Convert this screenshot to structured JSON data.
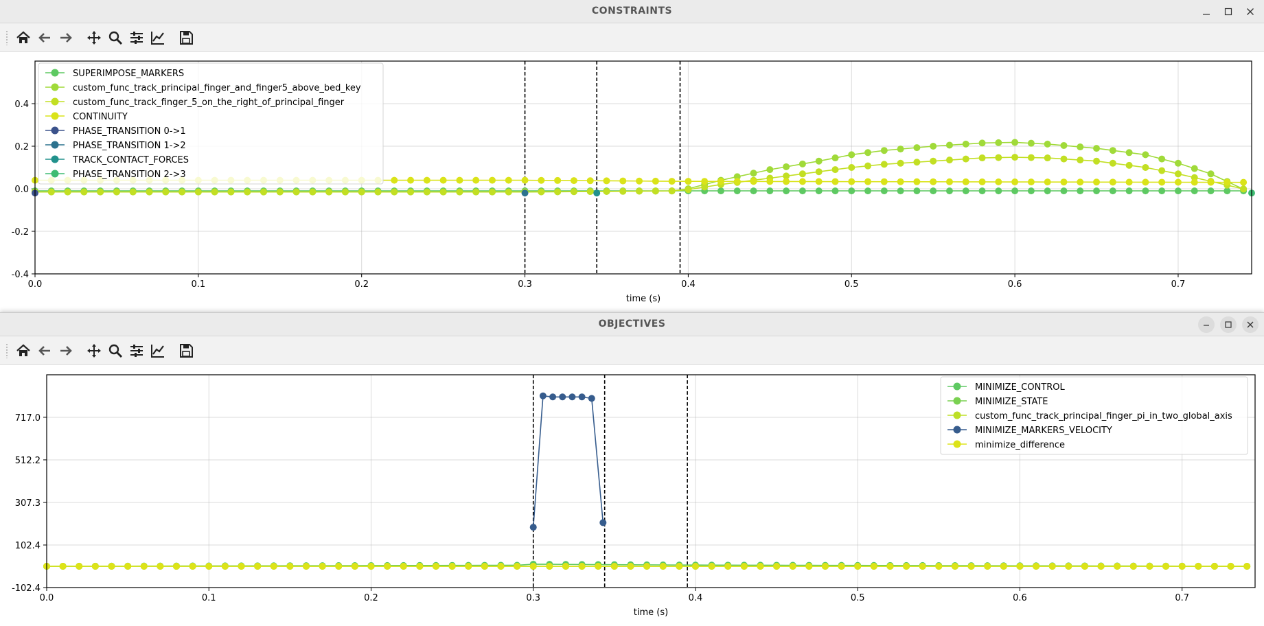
{
  "windows": [
    {
      "title": "CONSTRAINTS",
      "controls": [
        "minimize",
        "maximize",
        "close"
      ]
    },
    {
      "title": "OBJECTIVES",
      "controls": [
        "minimize",
        "maximize",
        "close"
      ]
    }
  ],
  "toolbar_icons": [
    "home-icon",
    "back-arrow-icon",
    "forward-arrow-icon",
    "pan-icon",
    "zoom-icon",
    "configure-subplots-icon",
    "edit-axis-icon",
    "save-icon"
  ],
  "colors": {
    "SUPERIMPOSE_MARKERS": "#5ec962",
    "custom_finger5": "#a0da39",
    "custom_right": "#c2df23",
    "CONTINUITY": "#dae319",
    "PHASE_TRANSITION 0->1": "#3b528b",
    "PHASE_TRANSITION 1->2": "#2c728e",
    "TRACK_CONTACT_FORCES": "#21918c",
    "PHASE_TRANSITION 2->3": "#3fbc73",
    "MINIMIZE_CONTROL": "#5ec962",
    "MINIMIZE_STATE": "#7ad151",
    "custom_pi": "#bddf26",
    "MINIMIZE_MARKERS_VELOCITY": "#365c8d",
    "minimize_difference": "#dde318"
  },
  "chart_data": [
    {
      "type": "line",
      "window": "CONSTRAINTS",
      "xlabel": "time (s)",
      "ylabel": "",
      "xlim": [
        0.0,
        0.745
      ],
      "ylim": [
        -0.4,
        0.6
      ],
      "x_ticks": [
        "0.0",
        "0.1",
        "0.2",
        "0.3",
        "0.4",
        "0.5",
        "0.6",
        "0.7"
      ],
      "y_ticks": [
        "-0.4",
        "-0.2",
        "0.0",
        "0.2",
        "0.4"
      ],
      "grid": true,
      "legend_position": "upper-left",
      "phase_boundaries": [
        0.3,
        0.344,
        0.395
      ],
      "series": [
        {
          "name": "SUPERIMPOSE_MARKERS",
          "color_key": "SUPERIMPOSE_MARKERS",
          "x": [
            0.0,
            0.3,
            0.395,
            0.745
          ],
          "y": [
            -0.01,
            -0.01,
            -0.01,
            -0.01
          ]
        },
        {
          "name": "custom_func_track_principal_finger_and_finger5_above_bed_key",
          "color_key": "custom_finger5",
          "x": [
            0.0,
            0.1,
            0.2,
            0.3,
            0.395,
            0.42,
            0.45,
            0.48,
            0.5,
            0.52,
            0.55,
            0.58,
            0.6,
            0.62,
            0.65,
            0.68,
            0.7,
            0.72,
            0.745
          ],
          "y": [
            -0.015,
            -0.015,
            -0.015,
            -0.015,
            -0.01,
            0.04,
            0.09,
            0.13,
            0.16,
            0.18,
            0.2,
            0.215,
            0.218,
            0.21,
            0.19,
            0.16,
            0.12,
            0.07,
            -0.02
          ]
        },
        {
          "name": "custom_func_track_finger_5_on_the_right_of_principal_finger",
          "color_key": "custom_right",
          "x": [
            0.0,
            0.1,
            0.2,
            0.3,
            0.395,
            0.42,
            0.45,
            0.48,
            0.5,
            0.52,
            0.55,
            0.58,
            0.6,
            0.62,
            0.65,
            0.68,
            0.7,
            0.72,
            0.745
          ],
          "y": [
            -0.015,
            -0.015,
            -0.015,
            -0.015,
            -0.01,
            0.02,
            0.05,
            0.08,
            0.1,
            0.115,
            0.13,
            0.145,
            0.148,
            0.145,
            0.13,
            0.1,
            0.07,
            0.035,
            -0.01
          ]
        },
        {
          "name": "CONTINUITY",
          "color_key": "CONTINUITY",
          "x": [
            0.0,
            0.3,
            0.395,
            0.745
          ],
          "y": [
            0.04,
            0.04,
            0.035,
            0.03
          ]
        },
        {
          "name": "PHASE_TRANSITION 0->1",
          "color_key": "PHASE_TRANSITION 0->1",
          "x": [
            0.0
          ],
          "y": [
            -0.02
          ]
        },
        {
          "name": "PHASE_TRANSITION 1->2",
          "color_key": "PHASE_TRANSITION 1->2",
          "x": [
            0.3
          ],
          "y": [
            -0.02
          ]
        },
        {
          "name": "TRACK_CONTACT_FORCES",
          "color_key": "TRACK_CONTACT_FORCES",
          "x": [
            0.344
          ],
          "y": [
            -0.02
          ]
        },
        {
          "name": "PHASE_TRANSITION 2->3",
          "color_key": "PHASE_TRANSITION 2->3",
          "x": [
            0.745
          ],
          "y": [
            -0.02
          ]
        }
      ]
    },
    {
      "type": "line",
      "window": "OBJECTIVES",
      "xlabel": "time (s)",
      "ylabel": "",
      "xlim": [
        0.0,
        0.745
      ],
      "ylim": [
        -102.4,
        921.6
      ],
      "x_ticks": [
        "0.0",
        "0.1",
        "0.2",
        "0.3",
        "0.4",
        "0.5",
        "0.6",
        "0.7"
      ],
      "y_ticks": [
        "-102.4",
        "102.4",
        "307.3",
        "512.2",
        "717.0"
      ],
      "grid": true,
      "legend_position": "upper-right",
      "phase_boundaries": [
        0.3,
        0.344,
        0.395
      ],
      "series": [
        {
          "name": "MINIMIZE_CONTROL",
          "color_key": "MINIMIZE_CONTROL",
          "x": [
            0.0,
            0.29,
            0.3,
            0.344,
            0.395,
            0.745
          ],
          "y": [
            0,
            5,
            10,
            8,
            6,
            0
          ]
        },
        {
          "name": "MINIMIZE_STATE",
          "color_key": "MINIMIZE_STATE",
          "x": [
            0.0,
            0.3,
            0.344,
            0.745
          ],
          "y": [
            0,
            0,
            0,
            0
          ]
        },
        {
          "name": "custom_func_track_principal_finger_pi_in_two_global_axis",
          "color_key": "custom_pi",
          "x": [
            0.0,
            0.3,
            0.344,
            0.745
          ],
          "y": [
            0,
            0,
            0,
            0
          ]
        },
        {
          "name": "MINIMIZE_MARKERS_VELOCITY",
          "color_key": "MINIMIZE_MARKERS_VELOCITY",
          "x": [
            0.3,
            0.306,
            0.312,
            0.318,
            0.324,
            0.33,
            0.336,
            0.343
          ],
          "y": [
            188,
            820,
            815,
            815,
            815,
            815,
            808,
            210
          ]
        },
        {
          "name": "minimize_difference",
          "color_key": "minimize_difference",
          "x": [
            0.0,
            0.745
          ],
          "y": [
            0,
            0
          ]
        }
      ]
    }
  ]
}
